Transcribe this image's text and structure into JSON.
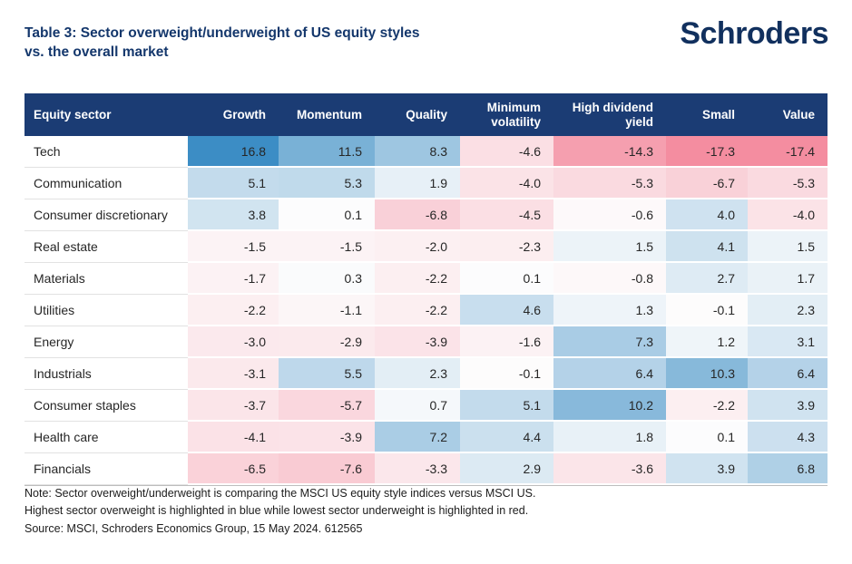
{
  "header": {
    "title_line1": "Table 3: Sector overweight/underweight of US equity styles",
    "title_line2": "vs. the overall market",
    "logo_text": "Schroders"
  },
  "colors": {
    "header_bg": "#1b3c74",
    "title_navy": "#14376c",
    "positive_max": "#3a8cc4",
    "negative_max": "#f48da0",
    "neutral": "#fdfdfd"
  },
  "table": {
    "columns": [
      "Equity sector",
      "Growth",
      "Momentum",
      "Quality",
      "Minimum volatility",
      "High dividend yield",
      "Small",
      "Value"
    ],
    "rows": [
      {
        "sector": "Tech",
        "values": [
          16.8,
          11.5,
          8.3,
          -4.6,
          -14.3,
          -17.3,
          -17.4
        ]
      },
      {
        "sector": "Communication",
        "values": [
          5.1,
          5.3,
          1.9,
          -4.0,
          -5.3,
          -6.7,
          -5.3
        ]
      },
      {
        "sector": "Consumer discretionary",
        "values": [
          3.8,
          0.1,
          -6.8,
          -4.5,
          -0.6,
          4.0,
          -4.0
        ]
      },
      {
        "sector": "Real estate",
        "values": [
          -1.5,
          -1.5,
          -2.0,
          -2.3,
          1.5,
          4.1,
          1.5
        ]
      },
      {
        "sector": "Materials",
        "values": [
          -1.7,
          0.3,
          -2.2,
          0.1,
          -0.8,
          2.7,
          1.7
        ]
      },
      {
        "sector": "Utilities",
        "values": [
          -2.2,
          -1.1,
          -2.2,
          4.6,
          1.3,
          -0.1,
          2.3
        ]
      },
      {
        "sector": "Energy",
        "values": [
          -3.0,
          -2.9,
          -3.9,
          -1.6,
          7.3,
          1.2,
          3.1
        ]
      },
      {
        "sector": "Industrials",
        "values": [
          -3.1,
          5.5,
          2.3,
          -0.1,
          6.4,
          10.3,
          6.4
        ]
      },
      {
        "sector": "Consumer staples",
        "values": [
          -3.7,
          -5.7,
          0.7,
          5.1,
          10.2,
          -2.2,
          3.9
        ]
      },
      {
        "sector": "Health care",
        "values": [
          -4.1,
          -3.9,
          7.2,
          4.4,
          1.8,
          0.1,
          4.3
        ]
      },
      {
        "sector": "Financials",
        "values": [
          -6.5,
          -7.6,
          -3.3,
          2.9,
          -3.6,
          3.9,
          6.8
        ]
      }
    ]
  },
  "notes": [
    "Note: Sector overweight/underweight is comparing the MSCI US equity style indices versus MSCI US.",
    "Highest sector overweight is highlighted in blue while lowest sector underweight is highlighted in red.",
    "Source: MSCI, Schroders Economics Group, 15 May 2024. 612565"
  ],
  "chart_data": {
    "type": "heatmap",
    "title": "Table 3: Sector overweight/underweight of US equity styles vs. the overall market",
    "rows": [
      "Tech",
      "Communication",
      "Consumer discretionary",
      "Real estate",
      "Materials",
      "Utilities",
      "Energy",
      "Industrials",
      "Consumer staples",
      "Health care",
      "Financials"
    ],
    "columns": [
      "Growth",
      "Momentum",
      "Quality",
      "Minimum volatility",
      "High dividend yield",
      "Small",
      "Value"
    ],
    "values": [
      [
        16.8,
        11.5,
        8.3,
        -4.6,
        -14.3,
        -17.3,
        -17.4
      ],
      [
        5.1,
        5.3,
        1.9,
        -4.0,
        -5.3,
        -6.7,
        -5.3
      ],
      [
        3.8,
        0.1,
        -6.8,
        -4.5,
        -0.6,
        4.0,
        -4.0
      ],
      [
        -1.5,
        -1.5,
        -2.0,
        -2.3,
        1.5,
        4.1,
        1.5
      ],
      [
        -1.7,
        0.3,
        -2.2,
        0.1,
        -0.8,
        2.7,
        1.7
      ],
      [
        -2.2,
        -1.1,
        -2.2,
        4.6,
        1.3,
        -0.1,
        2.3
      ],
      [
        -3.0,
        -2.9,
        -3.9,
        -1.6,
        7.3,
        1.2,
        3.1
      ],
      [
        -3.1,
        5.5,
        2.3,
        -0.1,
        6.4,
        10.3,
        6.4
      ],
      [
        -3.7,
        -5.7,
        0.7,
        5.1,
        10.2,
        -2.2,
        3.9
      ],
      [
        -4.1,
        -3.9,
        7.2,
        4.4,
        1.8,
        0.1,
        4.3
      ],
      [
        -6.5,
        -7.6,
        -3.3,
        2.9,
        -3.6,
        3.9,
        6.8
      ]
    ],
    "color_scale": {
      "positive_max_color": "#3a8cc4",
      "negative_max_color": "#f48da0",
      "midpoint": 0,
      "saturation_abs_value": 17
    }
  }
}
